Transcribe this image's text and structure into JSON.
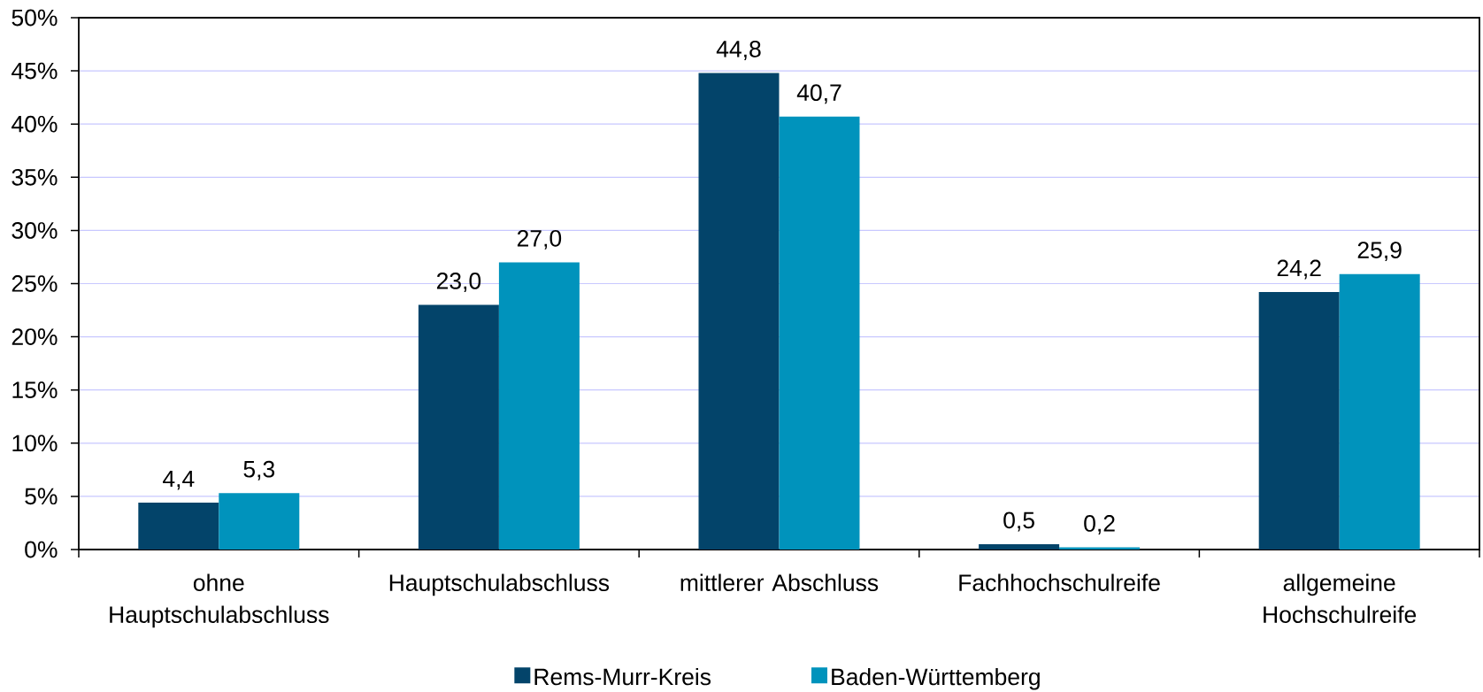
{
  "chart_data": {
    "type": "bar",
    "categories": [
      "ohne Hauptschulabschluss",
      "Hauptschulabschluss",
      "mittlerer Abschluss",
      "Fachhochschulreife",
      "allgemeine Hochschulreife"
    ],
    "series": [
      {
        "name": "Rems-Murr-Kreis",
        "color": "#03446a",
        "values": [
          4.4,
          23.0,
          44.8,
          0.5,
          24.2
        ],
        "value_labels": [
          "4,4",
          "23,0",
          "44,8",
          "0,5",
          "24,2"
        ]
      },
      {
        "name": "Baden-Württemberg",
        "color": "#0093bc",
        "values": [
          5.3,
          27.0,
          40.7,
          0.2,
          25.9
        ],
        "value_labels": [
          "5,3",
          "27,0",
          "40,7",
          "0,2",
          "25,9"
        ]
      }
    ],
    "ylim": [
      0,
      50
    ],
    "yticks": [
      {
        "value": 0,
        "label": "0%"
      },
      {
        "value": 5,
        "label": "5%"
      },
      {
        "value": 10,
        "label": "10%"
      },
      {
        "value": 15,
        "label": "15%"
      },
      {
        "value": 20,
        "label": "20%"
      },
      {
        "value": 25,
        "label": "25%"
      },
      {
        "value": 30,
        "label": "30%"
      },
      {
        "value": 35,
        "label": "35%"
      },
      {
        "value": 40,
        "label": "40%"
      },
      {
        "value": 45,
        "label": "45%"
      },
      {
        "value": 50,
        "label": "50%"
      }
    ],
    "grid": "y",
    "legend": "bottom"
  }
}
